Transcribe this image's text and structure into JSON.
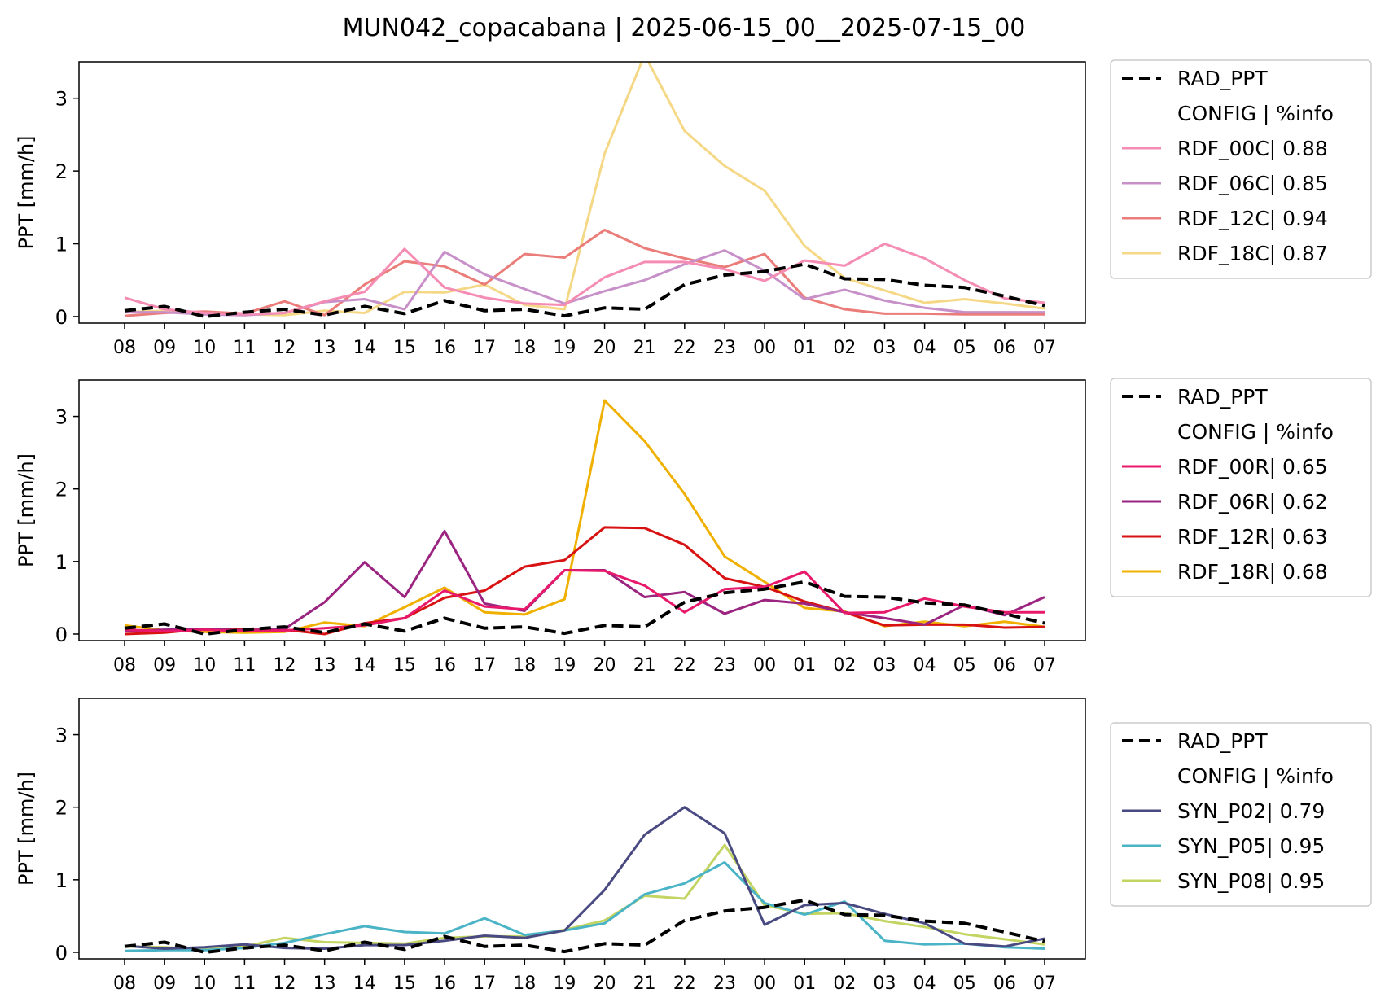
{
  "figure_title": "MUN042_copacabana | 2025-06-15_00__2025-07-15_00",
  "colors": {
    "rad": "#000000",
    "RDF_00C": "#f58cb4",
    "RDF_06C": "#c890c8",
    "RDF_12C": "#ea7d7a",
    "RDF_18C": "#f5d886",
    "RDF_00R": "#e8196a",
    "RDF_06R": "#9a2480",
    "RDF_12R": "#d81212",
    "RDF_18R": "#f0b000",
    "SYN_P02": "#4a4a82",
    "SYN_P05": "#4ab4c6",
    "SYN_P08": "#c4d462"
  },
  "chart_data": [
    {
      "type": "line",
      "title": "",
      "xlabel": "",
      "ylabel": "PPT [mm/h]",
      "categories": [
        "08",
        "09",
        "10",
        "11",
        "12",
        "13",
        "14",
        "15",
        "16",
        "17",
        "18",
        "19",
        "20",
        "21",
        "22",
        "23",
        "00",
        "01",
        "02",
        "03",
        "04",
        "05",
        "06",
        "07"
      ],
      "ylim": [
        -0.09,
        3.5
      ],
      "yticks": [
        "0",
        "1",
        "2",
        "3"
      ],
      "legend_position": "right",
      "legend": [
        "RAD_PPT",
        "CONFIG  | %info",
        "RDF_00C| 0.88",
        "RDF_06C| 0.85",
        "RDF_12C| 0.94",
        "RDF_18C| 0.87"
      ],
      "series": [
        {
          "name": "RAD_PPT",
          "color_key": "rad",
          "dashed": true,
          "values": [
            0.08,
            0.14,
            0.0,
            0.06,
            0.1,
            0.02,
            0.14,
            0.04,
            0.22,
            0.08,
            0.1,
            0.01,
            0.12,
            0.1,
            0.44,
            0.57,
            0.62,
            0.72,
            0.52,
            0.51,
            0.43,
            0.4,
            0.28,
            0.15
          ]
        },
        {
          "name": "RDF_00C| 0.88",
          "color_key": "RDF_00C",
          "values": [
            0.26,
            0.1,
            0.05,
            0.03,
            0.05,
            0.21,
            0.34,
            0.93,
            0.4,
            0.26,
            0.18,
            0.16,
            0.54,
            0.75,
            0.75,
            0.65,
            0.49,
            0.77,
            0.7,
            1.0,
            0.8,
            0.5,
            0.25,
            0.19
          ]
        },
        {
          "name": "RDF_06C| 0.85",
          "color_key": "RDF_06C",
          "values": [
            0.06,
            0.06,
            0.03,
            0.02,
            0.05,
            0.2,
            0.24,
            0.1,
            0.89,
            0.58,
            0.38,
            0.18,
            0.35,
            0.5,
            0.72,
            0.91,
            0.63,
            0.24,
            0.37,
            0.22,
            0.12,
            0.06,
            0.06,
            0.06
          ]
        },
        {
          "name": "RDF_12C| 0.94",
          "color_key": "RDF_12C",
          "values": [
            0.01,
            0.05,
            0.07,
            0.04,
            0.21,
            0.02,
            0.44,
            0.76,
            0.69,
            0.44,
            0.86,
            0.81,
            1.19,
            0.94,
            0.8,
            0.68,
            0.86,
            0.26,
            0.1,
            0.04,
            0.04,
            0.03,
            0.03,
            0.03
          ]
        },
        {
          "name": "RDF_18C| 0.87",
          "color_key": "RDF_18C",
          "values": [
            0.06,
            0.08,
            0.04,
            0.03,
            0.02,
            0.08,
            0.05,
            0.34,
            0.33,
            0.44,
            0.16,
            0.1,
            2.24,
            3.6,
            2.55,
            2.07,
            1.73,
            0.97,
            0.53,
            0.36,
            0.19,
            0.24,
            0.18,
            0.11
          ]
        }
      ]
    },
    {
      "type": "line",
      "title": "",
      "xlabel": "",
      "ylabel": "PPT [mm/h]",
      "categories": [
        "08",
        "09",
        "10",
        "11",
        "12",
        "13",
        "14",
        "15",
        "16",
        "17",
        "18",
        "19",
        "20",
        "21",
        "22",
        "23",
        "00",
        "01",
        "02",
        "03",
        "04",
        "05",
        "06",
        "07"
      ],
      "ylim": [
        -0.09,
        3.5
      ],
      "yticks": [
        "0",
        "1",
        "2",
        "3"
      ],
      "legend_position": "right",
      "legend": [
        "RAD_PPT",
        "CONFIG  | %info",
        "RDF_00R| 0.65",
        "RDF_06R| 0.62",
        "RDF_12R| 0.63",
        "RDF_18R| 0.68"
      ],
      "series": [
        {
          "name": "RAD_PPT",
          "color_key": "rad",
          "dashed": true,
          "values": [
            0.08,
            0.14,
            0.0,
            0.06,
            0.1,
            0.02,
            0.14,
            0.04,
            0.22,
            0.08,
            0.1,
            0.01,
            0.12,
            0.1,
            0.44,
            0.57,
            0.62,
            0.72,
            0.52,
            0.51,
            0.43,
            0.4,
            0.28,
            0.15
          ]
        },
        {
          "name": "RDF_00R| 0.65",
          "color_key": "RDF_00R",
          "values": [
            0.06,
            0.04,
            0.06,
            0.04,
            0.05,
            0.08,
            0.12,
            0.22,
            0.6,
            0.38,
            0.34,
            0.88,
            0.87,
            0.67,
            0.3,
            0.62,
            0.65,
            0.86,
            0.29,
            0.3,
            0.49,
            0.38,
            0.3,
            0.3
          ]
        },
        {
          "name": "RDF_06R| 0.62",
          "color_key": "RDF_06R",
          "values": [
            0.04,
            0.06,
            0.07,
            0.05,
            0.07,
            0.44,
            0.99,
            0.51,
            1.42,
            0.42,
            0.32,
            0.88,
            0.88,
            0.51,
            0.58,
            0.28,
            0.47,
            0.42,
            0.3,
            0.22,
            0.13,
            0.4,
            0.26,
            0.51
          ]
        },
        {
          "name": "RDF_12R| 0.63",
          "color_key": "RDF_12R",
          "values": [
            0.0,
            0.02,
            0.07,
            0.06,
            0.06,
            0.0,
            0.15,
            0.22,
            0.5,
            0.6,
            0.93,
            1.02,
            1.47,
            1.46,
            1.23,
            0.77,
            0.65,
            0.45,
            0.3,
            0.12,
            0.13,
            0.13,
            0.09,
            0.1
          ]
        },
        {
          "name": "RDF_18R| 0.68",
          "color_key": "RDF_18R",
          "values": [
            0.12,
            0.05,
            0.03,
            0.02,
            0.03,
            0.16,
            0.11,
            0.37,
            0.64,
            0.3,
            0.27,
            0.48,
            3.22,
            2.66,
            1.93,
            1.07,
            0.72,
            0.36,
            0.31,
            0.11,
            0.17,
            0.11,
            0.17,
            0.1
          ]
        }
      ]
    },
    {
      "type": "line",
      "title": "",
      "xlabel": "",
      "ylabel": "PPT [mm/h]",
      "categories": [
        "08",
        "09",
        "10",
        "11",
        "12",
        "13",
        "14",
        "15",
        "16",
        "17",
        "18",
        "19",
        "20",
        "21",
        "22",
        "23",
        "00",
        "01",
        "02",
        "03",
        "04",
        "05",
        "06",
        "07"
      ],
      "ylim": [
        -0.09,
        3.5
      ],
      "yticks": [
        "0",
        "1",
        "2",
        "3"
      ],
      "legend_position": "right",
      "legend": [
        "RAD_PPT",
        "CONFIG  | %info",
        "SYN_P02| 0.79",
        "SYN_P05| 0.95",
        "SYN_P08| 0.95"
      ],
      "series": [
        {
          "name": "RAD_PPT",
          "color_key": "rad",
          "dashed": true,
          "values": [
            0.08,
            0.14,
            0.0,
            0.06,
            0.1,
            0.02,
            0.14,
            0.04,
            0.22,
            0.08,
            0.1,
            0.01,
            0.12,
            0.1,
            0.44,
            0.57,
            0.62,
            0.72,
            0.52,
            0.51,
            0.43,
            0.4,
            0.28,
            0.15
          ]
        },
        {
          "name": "SYN_P02| 0.79",
          "color_key": "SYN_P02",
          "values": [
            0.09,
            0.05,
            0.07,
            0.11,
            0.06,
            0.05,
            0.1,
            0.1,
            0.16,
            0.23,
            0.2,
            0.3,
            0.86,
            1.62,
            2.0,
            1.64,
            0.38,
            0.65,
            0.68,
            0.53,
            0.4,
            0.12,
            0.08,
            0.19
          ]
        },
        {
          "name": "SYN_P05| 0.95",
          "color_key": "SYN_P05",
          "values": [
            0.02,
            0.03,
            0.03,
            0.06,
            0.13,
            0.25,
            0.36,
            0.28,
            0.26,
            0.47,
            0.24,
            0.3,
            0.4,
            0.8,
            0.95,
            1.24,
            0.68,
            0.52,
            0.7,
            0.16,
            0.11,
            0.12,
            0.07,
            0.05
          ]
        },
        {
          "name": "SYN_P08| 0.95",
          "color_key": "SYN_P08",
          "values": [
            0.08,
            0.07,
            0.04,
            0.08,
            0.2,
            0.14,
            0.13,
            0.12,
            0.2,
            0.22,
            0.22,
            0.31,
            0.44,
            0.78,
            0.74,
            1.48,
            0.65,
            0.53,
            0.54,
            0.43,
            0.35,
            0.25,
            0.18,
            0.11
          ]
        }
      ]
    }
  ]
}
